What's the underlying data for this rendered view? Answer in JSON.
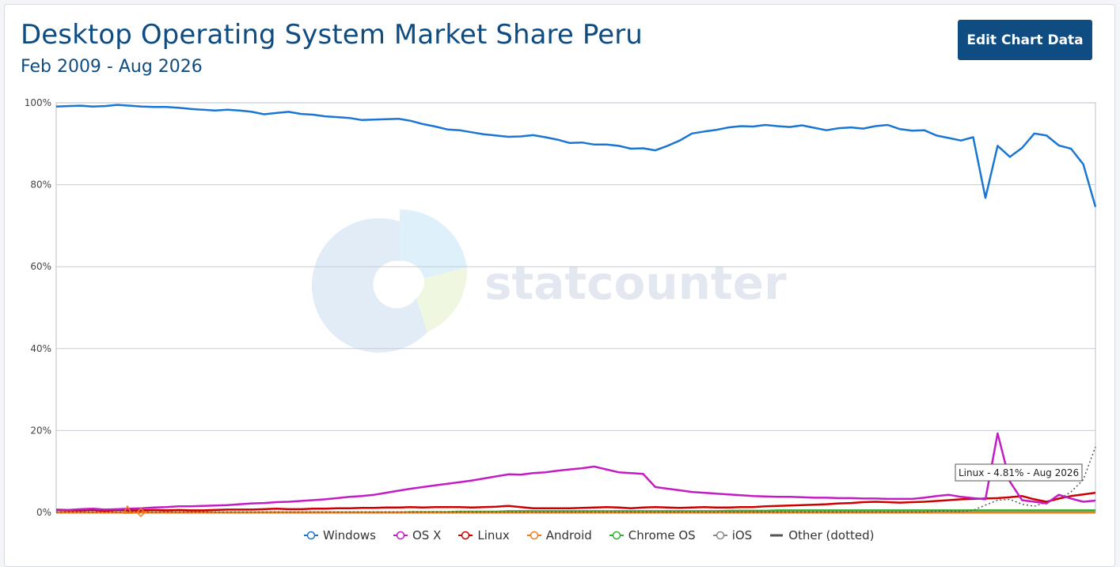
{
  "header": {
    "title": "Desktop Operating System Market Share Peru",
    "subtitle": "Feb 2009 - Aug 2026",
    "edit_button": "Edit Chart Data"
  },
  "watermark": "statcounter",
  "tooltip": "Linux - 4.81% - Aug 2026",
  "colors": {
    "Windows": "#1a76d2",
    "OS X": "#c41cc4",
    "Linux": "#cc0000",
    "Android": "#f07d1a",
    "Chrome OS": "#33b033",
    "iOS": "#888888",
    "Other (dotted)": "#555555"
  },
  "chart_data": {
    "type": "line",
    "x_start": "Feb 2009",
    "x_end": "Aug 2026",
    "ylim": [
      0,
      100
    ],
    "yticks": [
      "0%",
      "20%",
      "40%",
      "60%",
      "80%",
      "100%"
    ],
    "grid": true,
    "legend_position": "bottom",
    "series": [
      {
        "name": "Windows",
        "values": [
          99.1,
          99.2,
          99.3,
          99.1,
          99.2,
          99.5,
          99.3,
          99.1,
          99.0,
          99.0,
          98.8,
          98.5,
          98.3,
          98.1,
          98.3,
          98.1,
          97.8,
          97.2,
          97.5,
          97.8,
          97.3,
          97.1,
          96.7,
          96.5,
          96.3,
          95.8,
          95.9,
          96.0,
          96.1,
          95.6,
          94.8,
          94.2,
          93.5,
          93.3,
          92.8,
          92.3,
          92.0,
          91.7,
          91.8,
          92.1,
          91.6,
          91.0,
          90.2,
          90.3,
          89.8,
          89.8,
          89.5,
          88.8,
          88.9,
          88.4,
          89.5,
          90.8,
          92.5,
          93.0,
          93.4,
          94.0,
          94.3,
          94.2,
          94.6,
          94.3,
          94.1,
          94.5,
          93.9,
          93.3,
          93.8,
          94.0,
          93.7,
          94.3,
          94.6,
          93.6,
          93.2,
          93.3,
          92.0,
          91.4,
          90.8,
          91.6,
          76.8,
          89.5,
          86.8,
          89.0,
          92.5,
          92.0,
          89.6,
          88.8,
          85.0,
          74.6
        ]
      },
      {
        "name": "OS X",
        "values": [
          0.7,
          0.6,
          0.8,
          0.9,
          0.7,
          0.8,
          0.9,
          1.0,
          1.2,
          1.3,
          1.5,
          1.5,
          1.6,
          1.7,
          1.8,
          2.0,
          2.2,
          2.3,
          2.5,
          2.6,
          2.8,
          3.0,
          3.2,
          3.5,
          3.8,
          4.0,
          4.3,
          4.8,
          5.3,
          5.8,
          6.2,
          6.6,
          7.0,
          7.4,
          7.8,
          8.3,
          8.8,
          9.3,
          9.2,
          9.6,
          9.8,
          10.2,
          10.5,
          10.8,
          11.2,
          10.5,
          9.8,
          9.6,
          9.4,
          6.2,
          5.8,
          5.4,
          5.0,
          4.8,
          4.6,
          4.4,
          4.2,
          4.0,
          3.9,
          3.8,
          3.8,
          3.7,
          3.6,
          3.6,
          3.5,
          3.5,
          3.4,
          3.4,
          3.3,
          3.3,
          3.3,
          3.6,
          4.0,
          4.3,
          3.8,
          3.5,
          3.2,
          19.3,
          7.5,
          3.0,
          2.6,
          2.2,
          4.3,
          3.4,
          2.6,
          2.9
        ]
      },
      {
        "name": "Linux",
        "values": [
          0.6,
          0.5,
          0.5,
          0.6,
          0.4,
          0.6,
          0.5,
          0.5,
          0.6,
          0.5,
          0.6,
          0.5,
          0.5,
          0.6,
          0.7,
          0.7,
          0.7,
          0.8,
          0.9,
          0.8,
          0.8,
          0.9,
          0.9,
          1.0,
          1.0,
          1.1,
          1.1,
          1.2,
          1.2,
          1.3,
          1.2,
          1.3,
          1.3,
          1.3,
          1.2,
          1.3,
          1.4,
          1.6,
          1.3,
          1.0,
          1.0,
          1.0,
          1.0,
          1.1,
          1.2,
          1.3,
          1.2,
          1.0,
          1.2,
          1.3,
          1.2,
          1.1,
          1.2,
          1.3,
          1.2,
          1.2,
          1.3,
          1.3,
          1.5,
          1.6,
          1.7,
          1.8,
          1.9,
          2.0,
          2.2,
          2.3,
          2.5,
          2.6,
          2.5,
          2.4,
          2.5,
          2.6,
          2.8,
          3.0,
          3.2,
          3.3,
          3.4,
          3.5,
          3.7,
          4.0,
          3.2,
          2.6,
          3.4,
          4.0,
          4.4,
          4.81
        ]
      },
      {
        "name": "Android",
        "values": [
          0.0,
          0.0,
          0.0,
          0.0,
          0.0,
          0.0,
          0.0,
          0.0,
          0.0,
          0.0,
          0.0,
          0.0,
          0.0,
          0.0,
          0.0,
          0.0,
          0.0,
          0.0,
          0.0,
          0.0,
          0.0,
          0.0,
          0.0,
          0.0,
          0.0,
          0.0,
          0.0,
          0.0,
          0.0,
          0.0,
          0.0,
          0.0,
          0.0,
          0.0,
          0.0,
          0.0,
          0.0,
          0.0,
          0.0,
          0.0,
          0.0,
          0.0,
          0.0,
          0.0,
          0.0,
          0.0,
          0.0,
          0.0,
          0.0,
          0.0,
          0.0,
          0.0,
          0.0,
          0.0,
          0.0,
          0.0,
          0.0,
          0.0,
          0.0,
          0.0,
          0.0,
          0.0,
          0.0,
          0.0,
          0.0,
          0.0,
          0.0,
          0.0,
          0.0,
          0.0,
          0.0,
          0.0,
          0.0,
          0.0,
          0.0,
          0.0,
          0.0,
          0.0,
          0.0,
          0.0,
          0.0,
          0.0,
          0.0,
          0.0,
          0.0,
          0.0
        ]
      },
      {
        "name": "Chrome OS",
        "values": [
          0.0,
          0.0,
          0.0,
          0.0,
          0.0,
          0.0,
          0.0,
          0.0,
          0.0,
          0.0,
          0.0,
          0.0,
          0.0,
          0.0,
          0.0,
          0.0,
          0.0,
          0.0,
          0.0,
          0.0,
          0.0,
          0.0,
          0.0,
          0.0,
          0.0,
          0.0,
          0.0,
          0.0,
          0.0,
          0.1,
          0.1,
          0.1,
          0.1,
          0.2,
          0.2,
          0.2,
          0.2,
          0.3,
          0.3,
          0.3,
          0.3,
          0.3,
          0.3,
          0.3,
          0.3,
          0.3,
          0.3,
          0.3,
          0.3,
          0.3,
          0.3,
          0.3,
          0.3,
          0.3,
          0.3,
          0.4,
          0.4,
          0.4,
          0.4,
          0.5,
          0.5,
          0.5,
          0.5,
          0.5,
          0.5,
          0.5,
          0.5,
          0.5,
          0.5,
          0.5,
          0.5,
          0.5,
          0.5,
          0.5,
          0.5,
          0.5,
          0.5,
          0.5,
          0.5,
          0.5,
          0.5,
          0.5,
          0.5,
          0.5,
          0.5,
          0.5
        ]
      },
      {
        "name": "iOS",
        "values": [
          0.0,
          0.0,
          0.0,
          0.0,
          0.0,
          0.0,
          0.0,
          0.0,
          0.0,
          0.0,
          0.0,
          0.0,
          0.0,
          0.0,
          0.0,
          0.0,
          0.0,
          0.0,
          0.0,
          0.0,
          0.0,
          0.0,
          0.0,
          0.0,
          0.0,
          0.0,
          0.0,
          0.0,
          0.0,
          0.0,
          0.0,
          0.0,
          0.0,
          0.0,
          0.0,
          0.0,
          0.0,
          0.0,
          0.0,
          0.0,
          0.0,
          0.0,
          0.0,
          0.0,
          0.0,
          0.0,
          0.0,
          0.0,
          0.0,
          0.0,
          0.0,
          0.0,
          0.0,
          0.0,
          0.0,
          0.0,
          0.0,
          0.0,
          0.0,
          0.0,
          0.0,
          0.0,
          0.0,
          0.0,
          0.0,
          0.0,
          0.0,
          0.0,
          0.0,
          0.0,
          0.0,
          0.0,
          0.0,
          0.0,
          0.0,
          0.0,
          0.0,
          0.0,
          0.0,
          0.0,
          0.0,
          0.0,
          0.0,
          0.0,
          0.0,
          0.0
        ]
      },
      {
        "name": "Other (dotted)",
        "values": [
          0.1,
          0.1,
          0.1,
          0.1,
          0.1,
          0.1,
          0.1,
          0.1,
          0.1,
          0.1,
          0.1,
          0.1,
          0.1,
          0.1,
          0.1,
          0.1,
          0.1,
          0.1,
          0.1,
          0.1,
          0.1,
          0.1,
          0.1,
          0.1,
          0.1,
          0.1,
          0.1,
          0.1,
          0.1,
          0.1,
          0.1,
          0.1,
          0.1,
          0.1,
          0.1,
          0.1,
          0.1,
          0.1,
          0.1,
          0.1,
          0.1,
          0.1,
          0.1,
          0.1,
          0.1,
          0.1,
          0.1,
          0.1,
          0.1,
          0.1,
          0.1,
          0.1,
          0.1,
          0.1,
          0.1,
          0.1,
          0.1,
          0.1,
          0.1,
          0.1,
          0.1,
          0.1,
          0.1,
          0.1,
          0.1,
          0.1,
          0.1,
          0.1,
          0.1,
          0.1,
          0.1,
          0.1,
          0.3,
          0.3,
          0.2,
          0.5,
          1.8,
          3.0,
          3.2,
          2.0,
          1.5,
          2.5,
          3.2,
          5.0,
          8.0,
          16.0
        ]
      }
    ]
  }
}
